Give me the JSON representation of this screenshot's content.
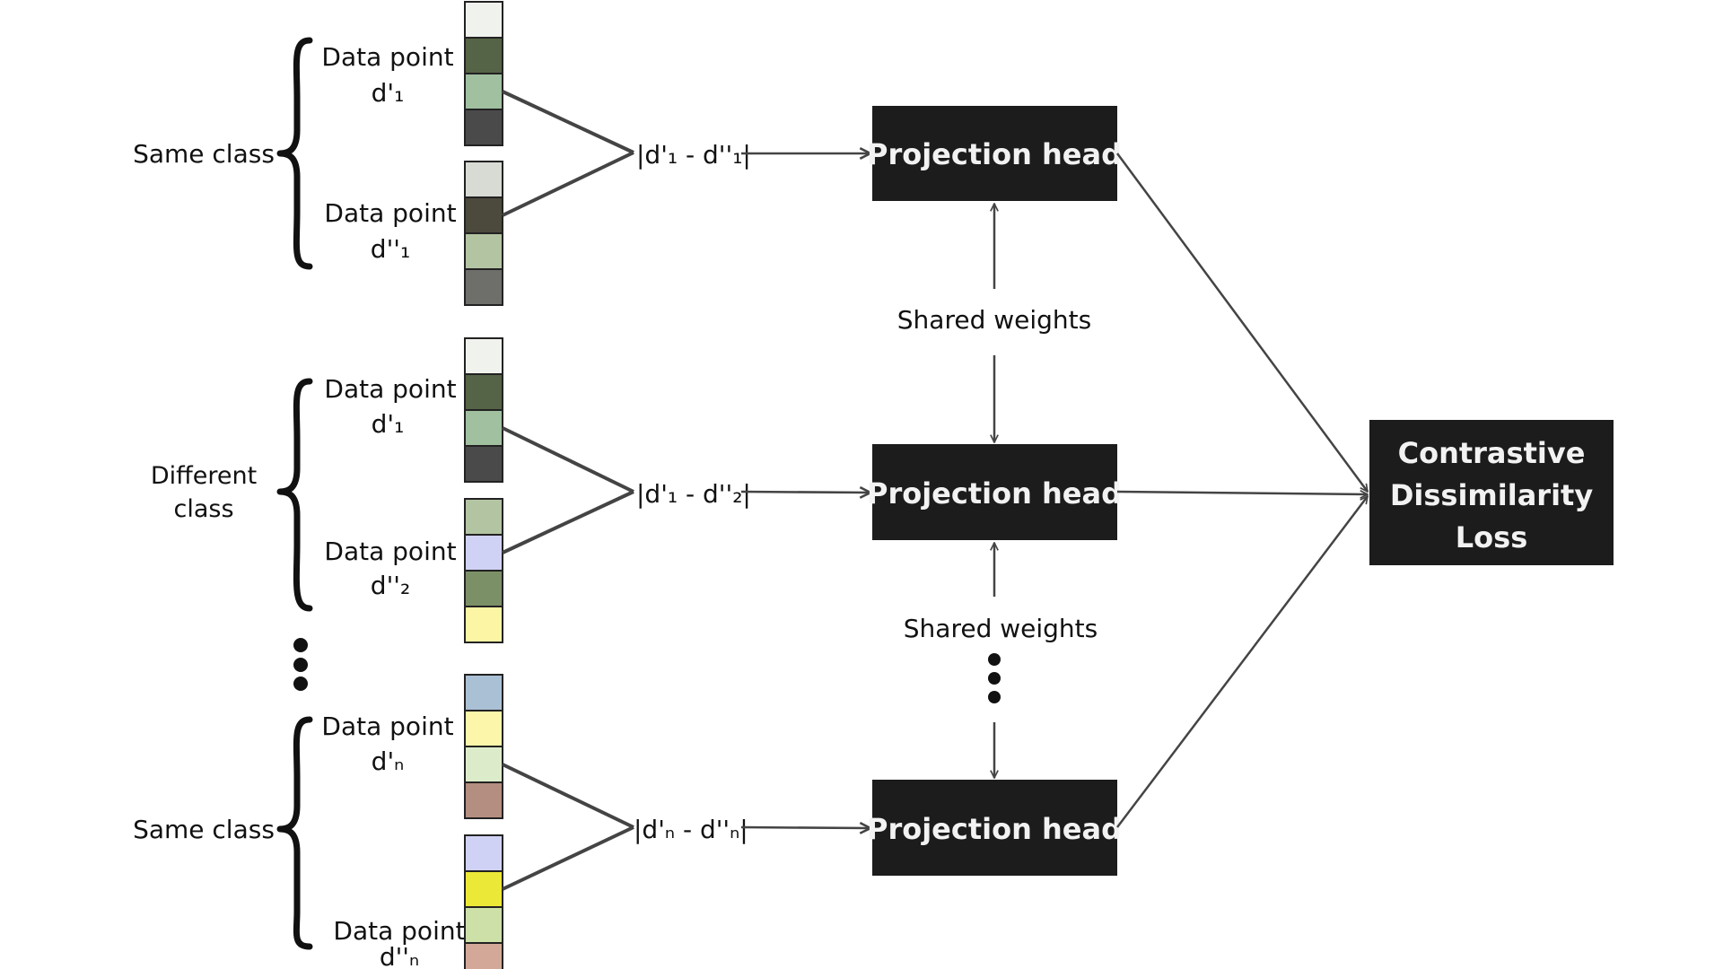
{
  "groups": [
    {
      "label_lines": [
        "Same class"
      ],
      "pair": [
        {
          "label_lines": [
            "Data point",
            "d'₁"
          ],
          "colors": [
            "#f0f2ed",
            "#556346",
            "#a0c0a0",
            "#4a4a4a"
          ]
        },
        {
          "label_lines": [
            "Data point",
            "d''₁"
          ],
          "colors": [
            "#d8dad4",
            "#4c4a3c",
            "#b3c4a3",
            "#6e6e6a"
          ]
        }
      ],
      "difference": "|d'₁ - d''₁|",
      "head": "Projection head"
    },
    {
      "label_lines": [
        "Different",
        "class"
      ],
      "pair": [
        {
          "label_lines": [
            "Data point",
            "d'₁"
          ],
          "colors": [
            "#f0f2ed",
            "#556346",
            "#a0c0a0",
            "#4a4a4a"
          ]
        },
        {
          "label_lines": [
            "Data point",
            "d''₂"
          ],
          "colors": [
            "#b3c4a3",
            "#d0d2f5",
            "#7c9068",
            "#fcf6a4"
          ]
        }
      ],
      "difference": "|d'₁ - d''₂|",
      "head": "Projection head"
    },
    {
      "label_lines": [
        "Same class"
      ],
      "pair": [
        {
          "label_lines": [
            "Data point",
            "d'ₙ"
          ],
          "colors": [
            "#aac0d4",
            "#fcf6aa",
            "#dcecca",
            "#b48e80"
          ]
        },
        {
          "label_lines": [
            "Data point",
            "d''ₙ"
          ],
          "colors": [
            "#d0d2f5",
            "#ece838",
            "#cce0a8",
            "#d4a898"
          ]
        }
      ],
      "difference": "|d'ₙ - d''ₙ|",
      "head": "Projection head"
    }
  ],
  "shared_weights": [
    "Shared weights",
    "Shared weights"
  ],
  "loss_lines": [
    "Contrastive",
    "Dissimilarity",
    "Loss"
  ],
  "colors": {
    "box": "#1c1c1c",
    "box_text": "#f2f2f2",
    "line": "#444444"
  }
}
